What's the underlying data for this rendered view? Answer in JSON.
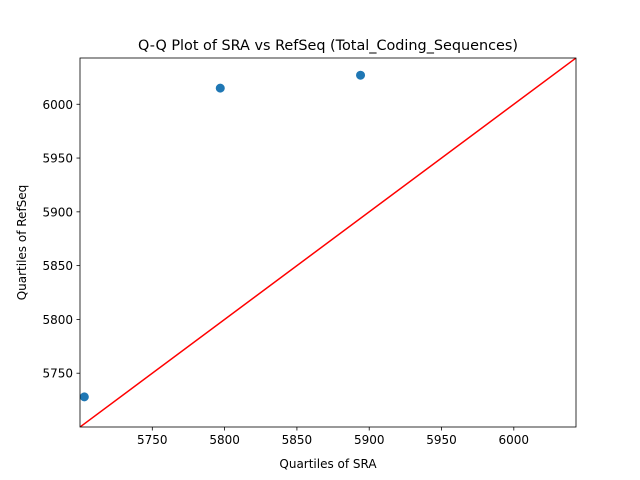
{
  "chart_data": {
    "type": "scatter",
    "title": "Q-Q Plot of SRA vs RefSeq (Total_Coding_Sequences)",
    "xlabel": "Quartiles of SRA",
    "ylabel": "Quartiles of RefSeq",
    "xlim": [
      5700,
      6043
    ],
    "ylim": [
      5700,
      6043
    ],
    "xticks": [
      5750,
      5800,
      5850,
      5900,
      5950,
      6000
    ],
    "yticks": [
      5750,
      5800,
      5850,
      5900,
      5950,
      6000
    ],
    "points": [
      {
        "x": 5703,
        "y": 5728
      },
      {
        "x": 5797,
        "y": 6015
      },
      {
        "x": 5894,
        "y": 6027
      }
    ],
    "reference_line": {
      "from": [
        5700,
        5700
      ],
      "to": [
        6043,
        6043
      ],
      "color": "#ff0000"
    },
    "point_color": "#1f77b4",
    "grid": false
  }
}
